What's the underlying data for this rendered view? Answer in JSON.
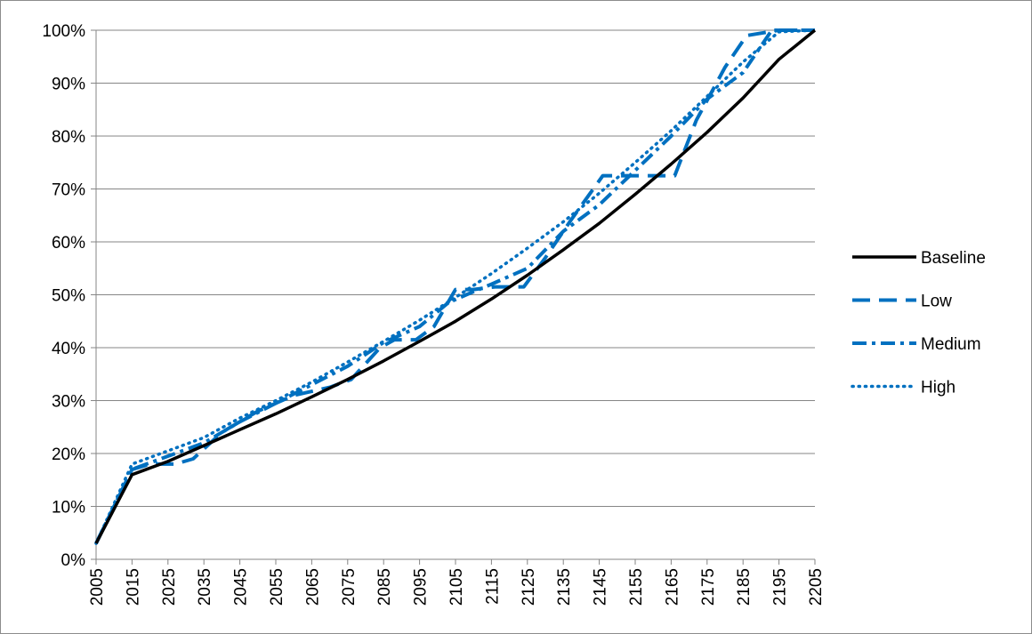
{
  "chart_data": {
    "type": "line",
    "title": "",
    "xlabel": "",
    "ylabel": "",
    "xlim": [
      2005,
      2205
    ],
    "ylim": [
      0,
      100
    ],
    "y_unit": "%",
    "x_ticks": [
      "2005",
      "2015",
      "2025",
      "2035",
      "2045",
      "2055",
      "2065",
      "2075",
      "2085",
      "2095",
      "2105",
      "2115",
      "2125",
      "2135",
      "2145",
      "2155",
      "2165",
      "2175",
      "2185",
      "2195",
      "2205"
    ],
    "y_ticks": [
      "0%",
      "10%",
      "20%",
      "30%",
      "40%",
      "50%",
      "60%",
      "70%",
      "80%",
      "90%",
      "100%"
    ],
    "grid": "horizontal",
    "legend_position": "right",
    "series": [
      {
        "name": "Baseline",
        "color": "#000000",
        "style": "solid",
        "x": [
          2005,
          2015,
          2025,
          2035,
          2045,
          2055,
          2065,
          2075,
          2085,
          2095,
          2105,
          2115,
          2125,
          2135,
          2145,
          2155,
          2165,
          2175,
          2185,
          2195,
          2205
        ],
        "y": [
          3,
          16,
          18.5,
          21.5,
          24.5,
          27.5,
          30.7,
          34,
          37.5,
          41.2,
          45,
          49.2,
          53.7,
          58.5,
          63.5,
          69,
          74.7,
          80.7,
          87.2,
          94.5,
          100
        ]
      },
      {
        "name": "Low",
        "color": "#0070c0",
        "style": "dash",
        "x": [
          2005,
          2015,
          2020,
          2027,
          2032,
          2040,
          2050,
          2060,
          2070,
          2076,
          2084,
          2088,
          2094,
          2099,
          2105,
          2110,
          2116,
          2124,
          2130,
          2137,
          2146,
          2152,
          2158,
          2166,
          2172,
          2180,
          2186,
          2195,
          2205
        ],
        "y": [
          3,
          17,
          18,
          18,
          19,
          24,
          28,
          31,
          32.5,
          34,
          40,
          41.5,
          41.5,
          44,
          51,
          51,
          51.5,
          51.5,
          57,
          64,
          72.5,
          72.5,
          72.5,
          72.5,
          83,
          93,
          99,
          100,
          100
        ]
      },
      {
        "name": "Medium",
        "color": "#0070c0",
        "style": "dashdot",
        "x": [
          2005,
          2015,
          2025,
          2035,
          2045,
          2055,
          2065,
          2075,
          2085,
          2095,
          2103,
          2108,
          2115,
          2125,
          2135,
          2145,
          2155,
          2165,
          2175,
          2185,
          2193,
          2205
        ],
        "y": [
          3,
          17,
          19.5,
          22,
          26,
          29.5,
          33,
          36.5,
          41,
          44,
          48.5,
          50,
          52,
          55,
          62,
          67,
          73.5,
          80,
          87,
          92,
          100,
          100
        ]
      },
      {
        "name": "High",
        "color": "#0070c0",
        "style": "dot",
        "x": [
          2005,
          2015,
          2025,
          2035,
          2045,
          2055,
          2065,
          2075,
          2085,
          2095,
          2105,
          2115,
          2125,
          2135,
          2145,
          2155,
          2165,
          2175,
          2185,
          2195,
          2205
        ],
        "y": [
          3,
          18,
          20.5,
          23,
          26.7,
          30,
          33.5,
          37.3,
          41.2,
          45.2,
          49.5,
          54,
          58.8,
          63.8,
          69.2,
          75,
          81,
          87.5,
          94,
          99.7,
          100
        ]
      }
    ]
  }
}
